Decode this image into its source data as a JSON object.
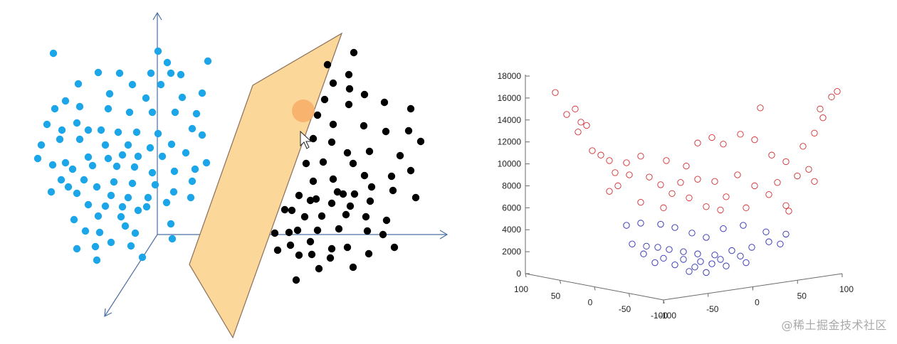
{
  "chart_data": [
    {
      "type": "scatter",
      "title": "",
      "description_marks": {
        "cluster_a_color": "#1aa6e8",
        "cluster_b_color": "#000000",
        "plane_fill": "#fcd79a",
        "plane_stroke": "#8a6f5a",
        "axis_color": "#4a6fa5",
        "highlight_color": "#f7b06a"
      },
      "axes": [
        "x",
        "y",
        "z"
      ],
      "series": [
        {
          "values": [
            [
              75,
              75
            ],
            [
              110,
              118
            ],
            [
              138,
              102
            ],
            [
              168,
              103
            ],
            [
              212,
              103
            ],
            [
              240,
              103
            ],
            [
              254,
              105
            ],
            [
              292,
              86
            ],
            [
              222,
              72
            ],
            [
              235,
              88
            ],
            [
              92,
              142
            ],
            [
              112,
              150
            ],
            [
              154,
              132
            ],
            [
              186,
              119
            ],
            [
              205,
              138
            ],
            [
              226,
              119
            ],
            [
              256,
              137
            ],
            [
              284,
              131
            ],
            [
              77,
              153
            ],
            [
              108,
              173
            ],
            [
              152,
              153
            ],
            [
              182,
              158
            ],
            [
              214,
              158
            ],
            [
              246,
              158
            ],
            [
              276,
              160
            ],
            [
              66,
              175
            ],
            [
              87,
              183
            ],
            [
              124,
              183
            ],
            [
              142,
              183
            ],
            [
              166,
              186
            ],
            [
              192,
              186
            ],
            [
              222,
              188
            ],
            [
              270,
              181
            ],
            [
              58,
              204
            ],
            [
              84,
              196
            ],
            [
              112,
              196
            ],
            [
              148,
              204
            ],
            [
              180,
              204
            ],
            [
              211,
              208
            ],
            [
              241,
              203
            ],
            [
              284,
              190
            ],
            [
              53,
              223
            ],
            [
              74,
              232
            ],
            [
              92,
              229
            ],
            [
              124,
              221
            ],
            [
              152,
              223
            ],
            [
              172,
              218
            ],
            [
              194,
              220
            ],
            [
              228,
              220
            ],
            [
              261,
              215
            ],
            [
              290,
              229
            ],
            [
              102,
              238
            ],
            [
              130,
              233
            ],
            [
              164,
              234
            ],
            [
              189,
              235
            ],
            [
              214,
              243
            ],
            [
              245,
              241
            ],
            [
              274,
              238
            ],
            [
              86,
              253
            ],
            [
              118,
              253
            ],
            [
              136,
              263
            ],
            [
              160,
              256
            ],
            [
              186,
              258
            ],
            [
              218,
              260
            ],
            [
              270,
              255
            ],
            [
              72,
              270
            ],
            [
              96,
              263
            ],
            [
              108,
              272
            ],
            [
              156,
              275
            ],
            [
              180,
              278
            ],
            [
              208,
              278
            ],
            [
              244,
              270
            ],
            [
              268,
              278
            ],
            [
              124,
              288
            ],
            [
              148,
              290
            ],
            [
              172,
              291
            ],
            [
              206,
              291
            ],
            [
              234,
              285
            ],
            [
              104,
              309
            ],
            [
              138,
              304
            ],
            [
              170,
              305
            ],
            [
              194,
              296
            ],
            [
              120,
              325
            ],
            [
              140,
              327
            ],
            [
              176,
              318
            ],
            [
              190,
              328
            ],
            [
              240,
              315
            ],
            [
              108,
              350
            ],
            [
              134,
              347
            ],
            [
              156,
              341
            ],
            [
              184,
              346
            ],
            [
              242,
              336
            ],
            [
              136,
              366
            ],
            [
              200,
              362
            ]
          ]
        },
        {
          "values": [
            [
              497,
              74
            ],
            [
              460,
              91
            ],
            [
              490,
              105
            ],
            [
              468,
              117
            ],
            [
              491,
              125
            ],
            [
              512,
              133
            ],
            [
              456,
              140
            ],
            [
              490,
              147
            ],
            [
              540,
              144
            ],
            [
              577,
              153
            ],
            [
              446,
              162
            ],
            [
              468,
              175
            ],
            [
              511,
              177
            ],
            [
              542,
              185
            ],
            [
              574,
              184
            ],
            [
              591,
              199
            ],
            [
              440,
              195
            ],
            [
              466,
              200
            ],
            [
              488,
              215
            ],
            [
              519,
              213
            ],
            [
              562,
              219
            ],
            [
              430,
              230
            ],
            [
              454,
              228
            ],
            [
              496,
              230
            ],
            [
              577,
              240
            ],
            [
              440,
              255
            ],
            [
              468,
              252
            ],
            [
              512,
              247
            ],
            [
              550,
              248
            ],
            [
              474,
              270
            ],
            [
              498,
              273
            ],
            [
              522,
              263
            ],
            [
              552,
              268
            ],
            [
              420,
              275
            ],
            [
              444,
              280
            ],
            [
              482,
              273
            ],
            [
              584,
              278
            ],
            [
              410,
              296
            ],
            [
              436,
              282
            ],
            [
              466,
              286
            ],
            [
              492,
              290
            ],
            [
              520,
              283
            ],
            [
              400,
              295
            ],
            [
              428,
              305
            ],
            [
              452,
              304
            ],
            [
              486,
              302
            ],
            [
              514,
              305
            ],
            [
              543,
              310
            ],
            [
              476,
              322
            ],
            [
              516,
              325
            ],
            [
              538,
              330
            ],
            [
              446,
              324
            ],
            [
              406,
              327
            ],
            [
              418,
              324
            ],
            [
              408,
              345
            ],
            [
              386,
              328
            ],
            [
              436,
              340
            ],
            [
              466,
              350
            ],
            [
              488,
              348
            ],
            [
              518,
              357
            ],
            [
              554,
              348
            ],
            [
              390,
              352
            ],
            [
              420,
              359
            ],
            [
              438,
              358
            ],
            [
              464,
              363
            ],
            [
              496,
              376
            ],
            [
              448,
              378
            ],
            [
              416,
              394
            ]
          ]
        }
      ]
    },
    {
      "type": "scatter",
      "title": "",
      "xlabel": "",
      "ylabel": "",
      "zlabel": "",
      "zlim": [
        0,
        18000
      ],
      "z_ticks": [
        "0",
        "2000",
        "4000",
        "6000",
        "8000",
        "10000",
        "12000",
        "14000",
        "16000",
        "18000"
      ],
      "x_ticks": [
        "100",
        "50",
        "0",
        "-50",
        "-100"
      ],
      "y_ticks": [
        "-100",
        "-50",
        "0",
        "50",
        "100"
      ],
      "grid": false,
      "series_colors": [
        "#d42a2a",
        "#2a2ab4"
      ],
      "series": [
        {
          "color": "#d42a2a",
          "points_xz": [
            [
              -90,
              16500
            ],
            [
              -76,
              15000
            ],
            [
              -82,
              14500
            ],
            [
              -72,
              13800
            ],
            [
              -68,
              13500
            ],
            [
              -74,
              12900
            ],
            [
              -64,
              11200
            ],
            [
              -58,
              10800
            ],
            [
              -52,
              10300
            ],
            [
              -40,
              10100
            ],
            [
              -30,
              10700
            ],
            [
              -12,
              10300
            ],
            [
              2,
              9800
            ],
            [
              10,
              11900
            ],
            [
              20,
              12400
            ],
            [
              28,
              11800
            ],
            [
              40,
              12700
            ],
            [
              50,
              12200
            ],
            [
              62,
              10800
            ],
            [
              72,
              10200
            ],
            [
              84,
              11600
            ],
            [
              92,
              12800
            ],
            [
              98,
              14200
            ],
            [
              96,
              15000
            ],
            [
              104,
              16100
            ],
            [
              108,
              16600
            ],
            [
              -48,
              9200
            ],
            [
              -38,
              9000
            ],
            [
              -46,
              8000
            ],
            [
              -52,
              7500
            ],
            [
              -24,
              8800
            ],
            [
              -16,
              8100
            ],
            [
              -2,
              8300
            ],
            [
              10,
              8600
            ],
            [
              22,
              8400
            ],
            [
              38,
              9000
            ],
            [
              50,
              8000
            ],
            [
              66,
              8300
            ],
            [
              80,
              8900
            ],
            [
              88,
              9500
            ],
            [
              92,
              8400
            ],
            [
              -8,
              7300
            ],
            [
              4,
              6900
            ],
            [
              16,
              6100
            ],
            [
              30,
              7000
            ],
            [
              44,
              6000
            ],
            [
              60,
              7200
            ],
            [
              72,
              6200
            ],
            [
              -30,
              6500
            ],
            [
              -14,
              6000
            ],
            [
              26,
              5800
            ],
            [
              74,
              5700
            ],
            [
              54,
              15100
            ]
          ]
        },
        {
          "color": "#2a2ab4",
          "points_xz": [
            [
              -40,
              4400
            ],
            [
              -30,
              4600
            ],
            [
              -16,
              4500
            ],
            [
              -6,
              4200
            ],
            [
              6,
              3700
            ],
            [
              16,
              3300
            ],
            [
              28,
              4100
            ],
            [
              42,
              4400
            ],
            [
              58,
              3800
            ],
            [
              72,
              3600
            ],
            [
              -36,
              2700
            ],
            [
              -26,
              2500
            ],
            [
              -18,
              2400
            ],
            [
              -10,
              2200
            ],
            [
              0,
              2000
            ],
            [
              10,
              1800
            ],
            [
              22,
              1700
            ],
            [
              34,
              2100
            ],
            [
              48,
              2400
            ],
            [
              60,
              2900
            ],
            [
              68,
              2700
            ],
            [
              -28,
              1800
            ],
            [
              -14,
              1400
            ],
            [
              0,
              1300
            ],
            [
              12,
              1100
            ],
            [
              26,
              1300
            ],
            [
              40,
              1600
            ],
            [
              -6,
              800
            ],
            [
              8,
              600
            ],
            [
              20,
              900
            ],
            [
              30,
              700
            ],
            [
              44,
              1000
            ],
            [
              -20,
              1000
            ],
            [
              4,
              200
            ],
            [
              16,
              100
            ]
          ]
        }
      ]
    }
  ],
  "watermark": "@稀土掘金技术社区"
}
